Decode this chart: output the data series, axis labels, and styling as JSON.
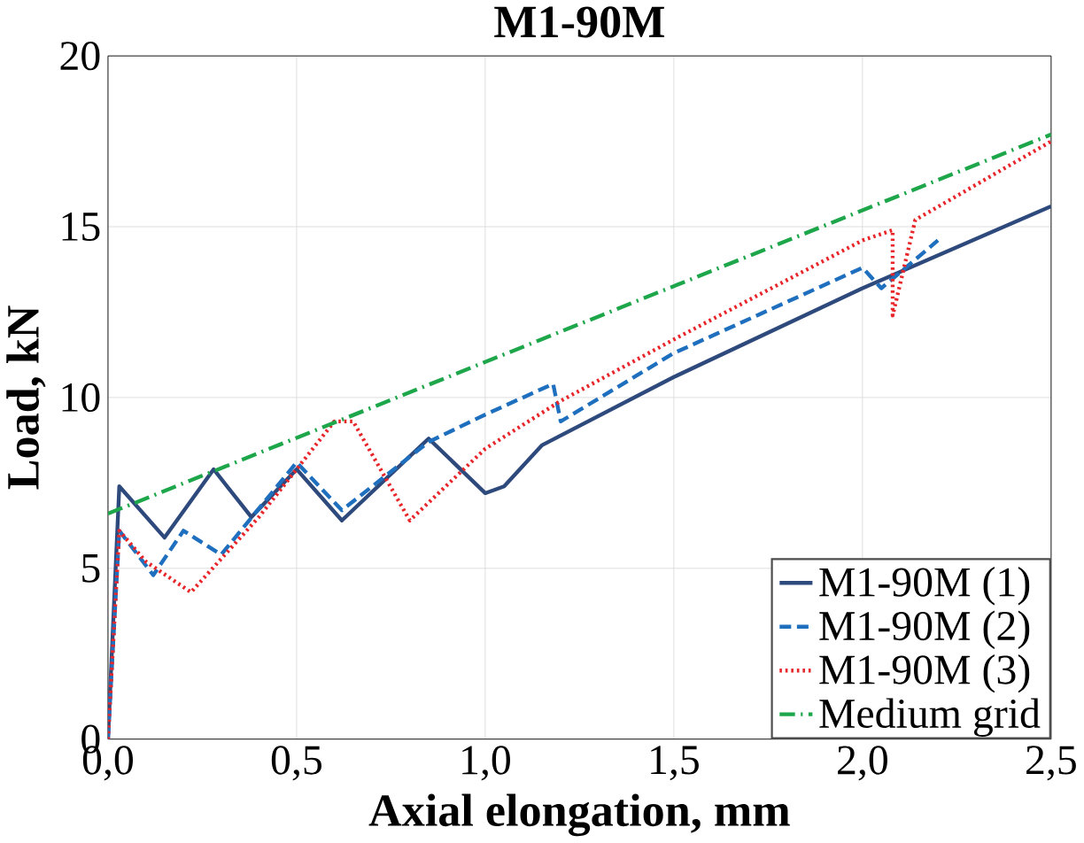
{
  "chart_data": {
    "type": "line",
    "title": "M1-90M",
    "xlabel": "Axial elongation, mm",
    "ylabel": "Load, kN",
    "xlim": [
      0,
      2.5
    ],
    "ylim": [
      0,
      20
    ],
    "xticks": [
      {
        "value": 0,
        "label": "0,0"
      },
      {
        "value": 0.5,
        "label": "0,5"
      },
      {
        "value": 1,
        "label": "1,0"
      },
      {
        "value": 1.5,
        "label": "1,5"
      },
      {
        "value": 2,
        "label": "2,0"
      },
      {
        "value": 2.5,
        "label": "2,5"
      }
    ],
    "yticks": [
      0,
      5,
      10,
      15,
      20
    ],
    "grid": true,
    "legend": "bottom right",
    "series": [
      {
        "name": "M1-90M (1)",
        "color": "#2e4a7d",
        "line_style": "solid",
        "x": [
          0,
          0.03,
          0.15,
          0.28,
          0.38,
          0.5,
          0.62,
          0.85,
          1.0,
          1.05,
          1.15,
          1.5,
          2.0,
          2.5
        ],
        "values": [
          0,
          7.4,
          5.9,
          7.9,
          6.5,
          7.9,
          6.4,
          8.8,
          7.2,
          7.4,
          8.6,
          10.6,
          13.2,
          15.6
        ]
      },
      {
        "name": "M1-90M (2)",
        "color": "#1f6fbf",
        "line_style": "dashed",
        "x": [
          0,
          0.03,
          0.12,
          0.2,
          0.3,
          0.5,
          0.62,
          0.85,
          1.0,
          1.18,
          1.2,
          1.5,
          2.0,
          2.05,
          2.2
        ],
        "values": [
          0,
          6.1,
          4.8,
          6.1,
          5.4,
          8.1,
          6.7,
          8.7,
          9.5,
          10.4,
          9.3,
          11.3,
          13.8,
          13.2,
          14.6
        ]
      },
      {
        "name": "M1-90M (3)",
        "color": "#e8262a",
        "line_style": "dotted",
        "x": [
          0,
          0.03,
          0.1,
          0.22,
          0.4,
          0.6,
          0.65,
          0.8,
          1.0,
          1.2,
          1.4,
          1.5,
          2.0,
          2.08,
          2.08,
          2.14,
          2.5
        ],
        "values": [
          0,
          6.1,
          5.2,
          4.3,
          6.5,
          9.3,
          9.3,
          6.4,
          8.5,
          9.9,
          11.1,
          11.7,
          14.6,
          14.9,
          12.4,
          15.2,
          17.5
        ]
      },
      {
        "name": "Medium grid",
        "color": "#1ea64b",
        "line_style": "dashdotted",
        "x": [
          0,
          2.5
        ],
        "values": [
          6.6,
          17.7
        ]
      }
    ]
  }
}
